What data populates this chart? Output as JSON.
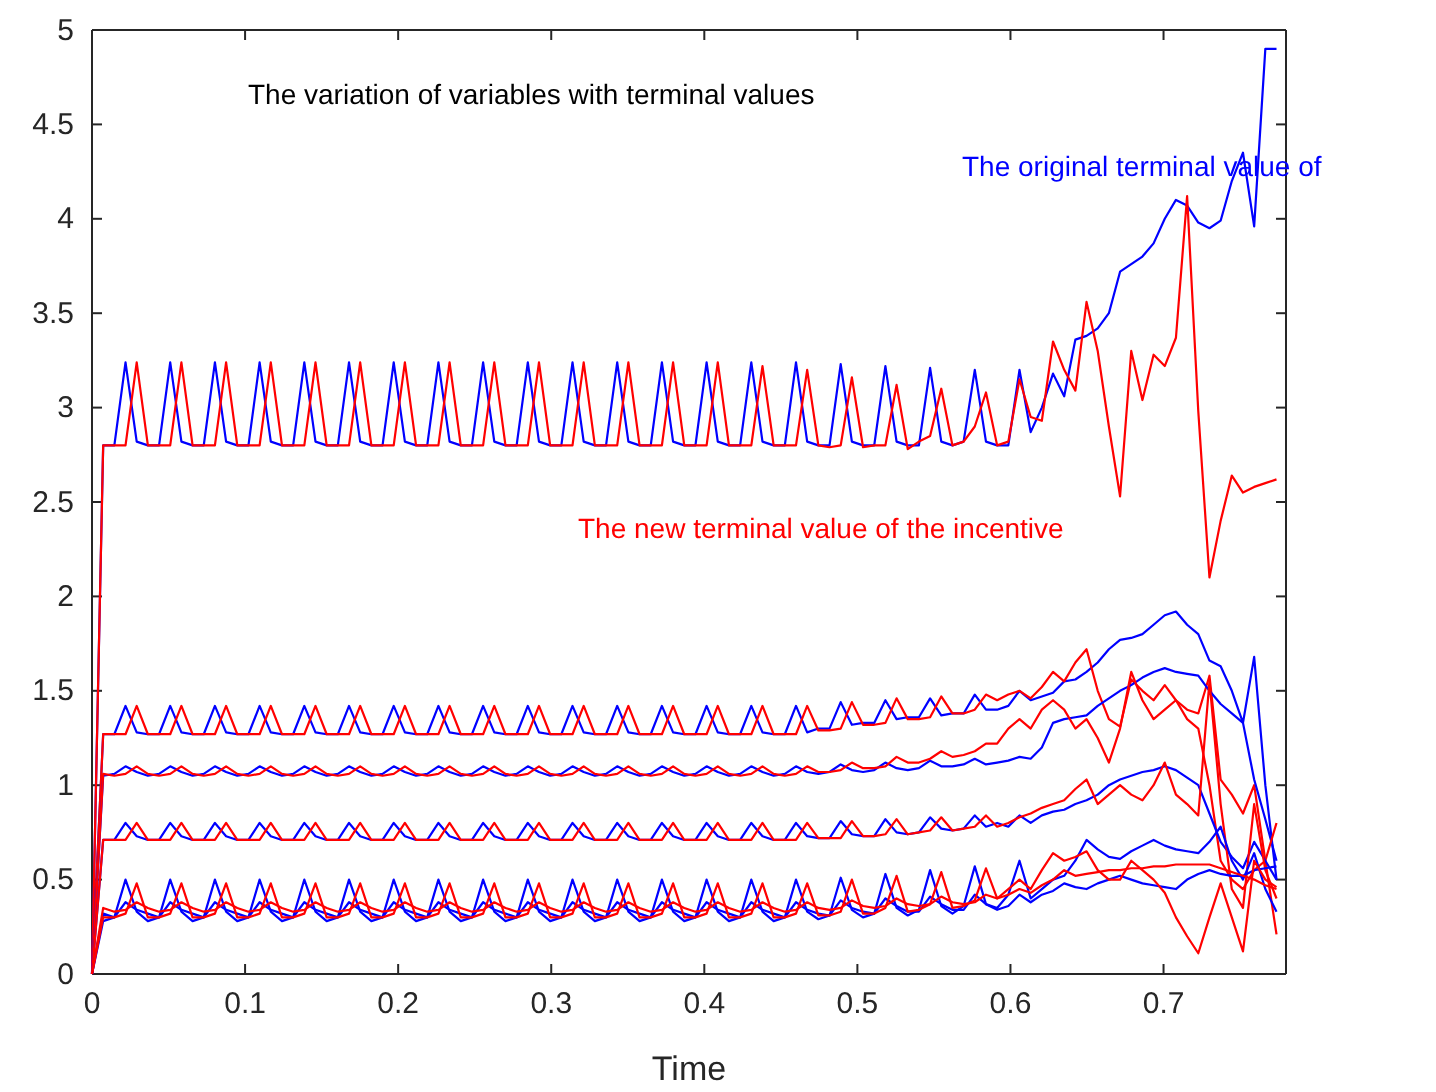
{
  "chart_data": {
    "type": "line",
    "title": "The variation of variables with terminal values",
    "xlabel": "Time",
    "annotations": [
      "The original terminal value of",
      "The new terminal value of the incentive"
    ],
    "xlim": [
      0,
      0.78
    ],
    "xticks": [
      0,
      0.1,
      0.2,
      0.3,
      0.4,
      0.5,
      0.6,
      0.7
    ],
    "ylim": [
      0,
      5
    ],
    "yticks": [
      0,
      0.5,
      1,
      1.5,
      2,
      2.5,
      3,
      3.5,
      4,
      4.5,
      5
    ],
    "grid": false,
    "x": [
      0,
      0.0073,
      0.0146,
      0.0219,
      0.0292,
      0.0365,
      0.0438,
      0.0511,
      0.0584,
      0.0657,
      0.073,
      0.0803,
      0.0876,
      0.0949,
      0.1022,
      0.1095,
      0.1168,
      0.1241,
      0.1314,
      0.1387,
      0.146,
      0.1533,
      0.1606,
      0.1679,
      0.1752,
      0.1825,
      0.1898,
      0.1971,
      0.2044,
      0.2117,
      0.219,
      0.2263,
      0.2336,
      0.2409,
      0.2482,
      0.2555,
      0.2628,
      0.2701,
      0.2774,
      0.2847,
      0.292,
      0.2993,
      0.3066,
      0.3139,
      0.3212,
      0.3285,
      0.3358,
      0.3431,
      0.3504,
      0.3577,
      0.365,
      0.3723,
      0.3796,
      0.3869,
      0.3942,
      0.4015,
      0.4088,
      0.4161,
      0.4234,
      0.4307,
      0.438,
      0.4453,
      0.4526,
      0.4599,
      0.4672,
      0.4745,
      0.4818,
      0.4891,
      0.4964,
      0.5037,
      0.511,
      0.5183,
      0.5256,
      0.5329,
      0.5402,
      0.5475,
      0.5548,
      0.5621,
      0.5694,
      0.5767,
      0.584,
      0.5913,
      0.5986,
      0.6059,
      0.6132,
      0.6205,
      0.6278,
      0.6351,
      0.6424,
      0.6497,
      0.657,
      0.6643,
      0.6716,
      0.6789,
      0.6862,
      0.6935,
      0.7008,
      0.7081,
      0.7154,
      0.7227,
      0.73,
      0.7373,
      0.7446,
      0.7519,
      0.7592,
      0.7665,
      0.7738
    ],
    "series": [
      {
        "color": "#0000ff",
        "values": [
          0,
          2.8,
          2.8,
          3.24,
          2.82,
          2.8,
          2.8,
          3.24,
          2.82,
          2.8,
          2.8,
          3.24,
          2.82,
          2.8,
          2.8,
          3.24,
          2.82,
          2.8,
          2.8,
          3.24,
          2.82,
          2.8,
          2.8,
          3.24,
          2.82,
          2.8,
          2.8,
          3.24,
          2.82,
          2.8,
          2.8,
          3.24,
          2.82,
          2.8,
          2.8,
          3.24,
          2.82,
          2.8,
          2.8,
          3.24,
          2.82,
          2.8,
          2.8,
          3.24,
          2.82,
          2.8,
          2.8,
          3.24,
          2.82,
          2.8,
          2.8,
          3.24,
          2.82,
          2.8,
          2.8,
          3.24,
          2.82,
          2.8,
          2.8,
          3.24,
          2.82,
          2.8,
          2.8,
          3.24,
          2.82,
          2.8,
          2.8,
          3.23,
          2.82,
          2.8,
          2.8,
          3.22,
          2.82,
          2.8,
          2.8,
          3.21,
          2.82,
          2.8,
          2.82,
          3.2,
          2.82,
          2.8,
          2.8,
          3.2,
          2.87,
          3.0,
          3.18,
          3.06,
          3.36,
          3.38,
          3.42,
          3.5,
          3.72,
          3.76,
          3.8,
          3.87,
          4.0,
          4.1,
          4.07,
          3.98,
          3.95,
          3.99,
          4.2,
          4.35,
          3.96,
          4.9,
          4.9
        ]
      },
      {
        "color": "#ff0000",
        "values": [
          0,
          2.8,
          2.8,
          2.8,
          3.24,
          2.8,
          2.8,
          2.8,
          3.24,
          2.8,
          2.8,
          2.8,
          3.24,
          2.8,
          2.8,
          2.8,
          3.24,
          2.8,
          2.8,
          2.8,
          3.24,
          2.8,
          2.8,
          2.8,
          3.24,
          2.8,
          2.8,
          2.8,
          3.24,
          2.8,
          2.8,
          2.8,
          3.24,
          2.8,
          2.8,
          2.8,
          3.24,
          2.8,
          2.8,
          2.8,
          3.24,
          2.8,
          2.8,
          2.8,
          3.24,
          2.8,
          2.8,
          2.8,
          3.24,
          2.8,
          2.8,
          2.8,
          3.24,
          2.8,
          2.8,
          2.8,
          3.24,
          2.8,
          2.8,
          2.8,
          3.22,
          2.8,
          2.8,
          2.8,
          3.2,
          2.8,
          2.79,
          2.8,
          3.16,
          2.79,
          2.8,
          2.8,
          3.12,
          2.78,
          2.82,
          2.85,
          3.1,
          2.8,
          2.82,
          2.9,
          3.08,
          2.8,
          2.82,
          3.15,
          2.95,
          2.93,
          3.35,
          3.2,
          3.09,
          3.56,
          3.3,
          2.9,
          2.53,
          3.3,
          3.04,
          3.28,
          3.22,
          3.37,
          4.12,
          2.98,
          2.1,
          2.4,
          2.64,
          2.55,
          2.58,
          2.6,
          2.62
        ]
      },
      {
        "color": "#0000ff",
        "values": [
          0,
          1.27,
          1.27,
          1.42,
          1.28,
          1.27,
          1.27,
          1.42,
          1.28,
          1.27,
          1.27,
          1.42,
          1.28,
          1.27,
          1.27,
          1.42,
          1.28,
          1.27,
          1.27,
          1.42,
          1.28,
          1.27,
          1.27,
          1.42,
          1.28,
          1.27,
          1.27,
          1.42,
          1.28,
          1.27,
          1.27,
          1.42,
          1.28,
          1.27,
          1.27,
          1.42,
          1.28,
          1.27,
          1.27,
          1.42,
          1.28,
          1.27,
          1.27,
          1.42,
          1.28,
          1.27,
          1.27,
          1.42,
          1.28,
          1.27,
          1.27,
          1.42,
          1.28,
          1.27,
          1.27,
          1.42,
          1.28,
          1.27,
          1.27,
          1.42,
          1.28,
          1.27,
          1.27,
          1.42,
          1.28,
          1.3,
          1.3,
          1.44,
          1.32,
          1.33,
          1.33,
          1.45,
          1.35,
          1.36,
          1.36,
          1.46,
          1.37,
          1.38,
          1.38,
          1.48,
          1.4,
          1.4,
          1.42,
          1.5,
          1.45,
          1.47,
          1.49,
          1.55,
          1.56,
          1.6,
          1.65,
          1.72,
          1.77,
          1.78,
          1.8,
          1.85,
          1.9,
          1.92,
          1.85,
          1.8,
          1.66,
          1.63,
          1.5,
          1.33,
          1.68,
          1.0,
          0.5
        ]
      },
      {
        "color": "#ff0000",
        "values": [
          0,
          1.27,
          1.27,
          1.27,
          1.42,
          1.27,
          1.27,
          1.27,
          1.42,
          1.27,
          1.27,
          1.27,
          1.42,
          1.27,
          1.27,
          1.27,
          1.42,
          1.27,
          1.27,
          1.27,
          1.42,
          1.27,
          1.27,
          1.27,
          1.42,
          1.27,
          1.27,
          1.27,
          1.42,
          1.27,
          1.27,
          1.27,
          1.42,
          1.27,
          1.27,
          1.27,
          1.42,
          1.27,
          1.27,
          1.27,
          1.42,
          1.27,
          1.27,
          1.27,
          1.42,
          1.27,
          1.27,
          1.27,
          1.42,
          1.27,
          1.27,
          1.27,
          1.42,
          1.27,
          1.27,
          1.27,
          1.42,
          1.27,
          1.27,
          1.27,
          1.42,
          1.27,
          1.27,
          1.27,
          1.42,
          1.29,
          1.29,
          1.3,
          1.44,
          1.32,
          1.32,
          1.33,
          1.46,
          1.35,
          1.35,
          1.36,
          1.47,
          1.38,
          1.38,
          1.4,
          1.48,
          1.45,
          1.48,
          1.5,
          1.46,
          1.52,
          1.6,
          1.55,
          1.65,
          1.72,
          1.5,
          1.35,
          1.31,
          1.56,
          1.5,
          1.45,
          1.53,
          1.45,
          1.4,
          1.38,
          1.58,
          1.03,
          0.95,
          0.85,
          1.0,
          0.6,
          0.21
        ]
      },
      {
        "color": "#0000ff",
        "values": [
          0,
          1.05,
          1.06,
          1.1,
          1.07,
          1.05,
          1.06,
          1.1,
          1.07,
          1.05,
          1.06,
          1.1,
          1.07,
          1.05,
          1.06,
          1.1,
          1.07,
          1.05,
          1.06,
          1.1,
          1.07,
          1.05,
          1.06,
          1.1,
          1.07,
          1.05,
          1.06,
          1.1,
          1.07,
          1.05,
          1.06,
          1.1,
          1.07,
          1.05,
          1.06,
          1.1,
          1.07,
          1.05,
          1.06,
          1.1,
          1.07,
          1.05,
          1.06,
          1.1,
          1.07,
          1.05,
          1.06,
          1.1,
          1.07,
          1.05,
          1.06,
          1.1,
          1.07,
          1.05,
          1.06,
          1.1,
          1.07,
          1.05,
          1.06,
          1.1,
          1.07,
          1.05,
          1.06,
          1.1,
          1.07,
          1.06,
          1.07,
          1.11,
          1.08,
          1.07,
          1.08,
          1.12,
          1.09,
          1.08,
          1.09,
          1.13,
          1.1,
          1.1,
          1.11,
          1.14,
          1.11,
          1.12,
          1.13,
          1.15,
          1.14,
          1.2,
          1.33,
          1.35,
          1.36,
          1.37,
          1.42,
          1.46,
          1.5,
          1.53,
          1.57,
          1.6,
          1.62,
          1.6,
          1.59,
          1.58,
          1.5,
          1.43,
          1.38,
          1.33,
          1.03,
          0.82,
          0.6
        ]
      },
      {
        "color": "#ff0000",
        "values": [
          0,
          1.06,
          1.05,
          1.06,
          1.1,
          1.06,
          1.05,
          1.06,
          1.1,
          1.06,
          1.05,
          1.06,
          1.1,
          1.06,
          1.05,
          1.06,
          1.1,
          1.06,
          1.05,
          1.06,
          1.1,
          1.06,
          1.05,
          1.06,
          1.1,
          1.06,
          1.05,
          1.06,
          1.1,
          1.06,
          1.05,
          1.06,
          1.1,
          1.06,
          1.05,
          1.06,
          1.1,
          1.06,
          1.05,
          1.06,
          1.1,
          1.06,
          1.05,
          1.06,
          1.1,
          1.06,
          1.05,
          1.06,
          1.1,
          1.06,
          1.05,
          1.06,
          1.1,
          1.06,
          1.05,
          1.06,
          1.1,
          1.06,
          1.05,
          1.06,
          1.1,
          1.06,
          1.05,
          1.06,
          1.1,
          1.07,
          1.07,
          1.08,
          1.12,
          1.09,
          1.09,
          1.1,
          1.15,
          1.12,
          1.12,
          1.14,
          1.18,
          1.15,
          1.16,
          1.18,
          1.22,
          1.22,
          1.3,
          1.35,
          1.3,
          1.4,
          1.45,
          1.4,
          1.3,
          1.35,
          1.25,
          1.12,
          1.3,
          1.6,
          1.45,
          1.35,
          1.4,
          1.45,
          1.35,
          1.3,
          1.0,
          0.6,
          0.5,
          0.45,
          0.55,
          0.6,
          0.8
        ]
      },
      {
        "color": "#0000ff",
        "values": [
          0,
          0.71,
          0.71,
          0.8,
          0.73,
          0.71,
          0.71,
          0.8,
          0.73,
          0.71,
          0.71,
          0.8,
          0.73,
          0.71,
          0.71,
          0.8,
          0.73,
          0.71,
          0.71,
          0.8,
          0.73,
          0.71,
          0.71,
          0.8,
          0.73,
          0.71,
          0.71,
          0.8,
          0.73,
          0.71,
          0.71,
          0.8,
          0.73,
          0.71,
          0.71,
          0.8,
          0.73,
          0.71,
          0.71,
          0.8,
          0.73,
          0.71,
          0.71,
          0.8,
          0.73,
          0.71,
          0.71,
          0.8,
          0.73,
          0.71,
          0.71,
          0.8,
          0.73,
          0.71,
          0.71,
          0.8,
          0.73,
          0.71,
          0.71,
          0.8,
          0.73,
          0.71,
          0.71,
          0.8,
          0.73,
          0.72,
          0.72,
          0.81,
          0.74,
          0.73,
          0.73,
          0.82,
          0.75,
          0.74,
          0.75,
          0.83,
          0.77,
          0.76,
          0.77,
          0.84,
          0.78,
          0.8,
          0.78,
          0.84,
          0.8,
          0.84,
          0.86,
          0.87,
          0.9,
          0.92,
          0.95,
          1.0,
          1.03,
          1.05,
          1.07,
          1.08,
          1.1,
          1.08,
          1.04,
          1.0,
          0.85,
          0.7,
          0.62,
          0.56,
          0.7,
          0.6,
          0.5
        ]
      },
      {
        "color": "#ff0000",
        "values": [
          0,
          0.71,
          0.71,
          0.71,
          0.8,
          0.71,
          0.71,
          0.71,
          0.8,
          0.71,
          0.71,
          0.71,
          0.8,
          0.71,
          0.71,
          0.71,
          0.8,
          0.71,
          0.71,
          0.71,
          0.8,
          0.71,
          0.71,
          0.71,
          0.8,
          0.71,
          0.71,
          0.71,
          0.8,
          0.71,
          0.71,
          0.71,
          0.8,
          0.71,
          0.71,
          0.71,
          0.8,
          0.71,
          0.71,
          0.71,
          0.8,
          0.71,
          0.71,
          0.71,
          0.8,
          0.71,
          0.71,
          0.71,
          0.8,
          0.71,
          0.71,
          0.71,
          0.8,
          0.71,
          0.71,
          0.71,
          0.8,
          0.71,
          0.71,
          0.71,
          0.8,
          0.71,
          0.71,
          0.71,
          0.8,
          0.72,
          0.72,
          0.72,
          0.81,
          0.73,
          0.73,
          0.74,
          0.82,
          0.74,
          0.75,
          0.76,
          0.83,
          0.76,
          0.77,
          0.78,
          0.84,
          0.78,
          0.8,
          0.83,
          0.85,
          0.88,
          0.9,
          0.92,
          0.98,
          1.03,
          0.9,
          0.95,
          1.0,
          0.95,
          0.92,
          1.0,
          1.12,
          0.95,
          0.9,
          0.84,
          1.55,
          0.9,
          0.45,
          0.35,
          0.9,
          0.55,
          0.4
        ]
      },
      {
        "color": "#0000ff",
        "values": [
          0,
          0.28,
          0.3,
          0.5,
          0.33,
          0.28,
          0.3,
          0.5,
          0.33,
          0.28,
          0.3,
          0.5,
          0.33,
          0.28,
          0.3,
          0.5,
          0.33,
          0.28,
          0.3,
          0.5,
          0.33,
          0.28,
          0.3,
          0.5,
          0.33,
          0.28,
          0.3,
          0.5,
          0.33,
          0.28,
          0.3,
          0.5,
          0.33,
          0.28,
          0.3,
          0.5,
          0.33,
          0.28,
          0.3,
          0.5,
          0.33,
          0.28,
          0.3,
          0.5,
          0.33,
          0.28,
          0.3,
          0.5,
          0.33,
          0.28,
          0.3,
          0.5,
          0.33,
          0.28,
          0.3,
          0.5,
          0.33,
          0.28,
          0.3,
          0.5,
          0.33,
          0.28,
          0.3,
          0.5,
          0.33,
          0.29,
          0.31,
          0.51,
          0.34,
          0.3,
          0.32,
          0.53,
          0.35,
          0.31,
          0.34,
          0.55,
          0.36,
          0.32,
          0.36,
          0.57,
          0.37,
          0.35,
          0.42,
          0.6,
          0.4,
          0.45,
          0.5,
          0.52,
          0.6,
          0.71,
          0.66,
          0.62,
          0.61,
          0.65,
          0.68,
          0.71,
          0.68,
          0.66,
          0.65,
          0.64,
          0.7,
          0.78,
          0.6,
          0.5,
          0.64,
          0.45,
          0.33
        ]
      },
      {
        "color": "#0000ff",
        "values": [
          0,
          0.32,
          0.3,
          0.38,
          0.34,
          0.32,
          0.3,
          0.38,
          0.34,
          0.32,
          0.3,
          0.38,
          0.34,
          0.32,
          0.3,
          0.38,
          0.34,
          0.32,
          0.3,
          0.38,
          0.34,
          0.32,
          0.3,
          0.38,
          0.34,
          0.32,
          0.3,
          0.38,
          0.34,
          0.32,
          0.3,
          0.38,
          0.34,
          0.32,
          0.3,
          0.38,
          0.34,
          0.32,
          0.3,
          0.38,
          0.34,
          0.32,
          0.3,
          0.38,
          0.34,
          0.32,
          0.3,
          0.38,
          0.34,
          0.32,
          0.3,
          0.38,
          0.34,
          0.32,
          0.3,
          0.38,
          0.34,
          0.32,
          0.3,
          0.38,
          0.34,
          0.32,
          0.3,
          0.38,
          0.34,
          0.32,
          0.31,
          0.39,
          0.35,
          0.33,
          0.32,
          0.4,
          0.36,
          0.33,
          0.33,
          0.41,
          0.37,
          0.34,
          0.34,
          0.42,
          0.37,
          0.34,
          0.36,
          0.42,
          0.38,
          0.42,
          0.44,
          0.48,
          0.46,
          0.45,
          0.48,
          0.5,
          0.52,
          0.5,
          0.48,
          0.47,
          0.46,
          0.45,
          0.5,
          0.53,
          0.55,
          0.53,
          0.52,
          0.52,
          0.55,
          0.56,
          0.57
        ]
      },
      {
        "color": "#ff0000",
        "values": [
          0,
          0.3,
          0.3,
          0.32,
          0.48,
          0.3,
          0.3,
          0.32,
          0.48,
          0.3,
          0.3,
          0.32,
          0.48,
          0.3,
          0.3,
          0.32,
          0.48,
          0.3,
          0.3,
          0.32,
          0.48,
          0.3,
          0.3,
          0.32,
          0.48,
          0.3,
          0.3,
          0.32,
          0.48,
          0.3,
          0.3,
          0.32,
          0.48,
          0.3,
          0.3,
          0.32,
          0.48,
          0.3,
          0.3,
          0.32,
          0.48,
          0.3,
          0.3,
          0.32,
          0.48,
          0.3,
          0.3,
          0.32,
          0.48,
          0.3,
          0.3,
          0.32,
          0.48,
          0.3,
          0.3,
          0.32,
          0.48,
          0.3,
          0.3,
          0.32,
          0.48,
          0.3,
          0.3,
          0.32,
          0.48,
          0.31,
          0.31,
          0.33,
          0.5,
          0.32,
          0.32,
          0.35,
          0.52,
          0.33,
          0.34,
          0.37,
          0.54,
          0.35,
          0.36,
          0.39,
          0.56,
          0.4,
          0.45,
          0.5,
          0.45,
          0.55,
          0.64,
          0.6,
          0.62,
          0.65,
          0.55,
          0.5,
          0.5,
          0.6,
          0.55,
          0.5,
          0.43,
          0.3,
          0.2,
          0.11,
          0.3,
          0.48,
          0.3,
          0.12,
          0.6,
          0.5,
          0.46
        ]
      },
      {
        "color": "#ff0000",
        "values": [
          0,
          0.35,
          0.33,
          0.34,
          0.38,
          0.35,
          0.33,
          0.34,
          0.38,
          0.35,
          0.33,
          0.34,
          0.38,
          0.35,
          0.33,
          0.34,
          0.38,
          0.35,
          0.33,
          0.34,
          0.38,
          0.35,
          0.33,
          0.34,
          0.38,
          0.35,
          0.33,
          0.34,
          0.38,
          0.35,
          0.33,
          0.34,
          0.38,
          0.35,
          0.33,
          0.34,
          0.38,
          0.35,
          0.33,
          0.34,
          0.38,
          0.35,
          0.33,
          0.34,
          0.38,
          0.35,
          0.33,
          0.34,
          0.38,
          0.35,
          0.33,
          0.34,
          0.38,
          0.35,
          0.33,
          0.34,
          0.38,
          0.35,
          0.33,
          0.34,
          0.38,
          0.35,
          0.33,
          0.34,
          0.38,
          0.35,
          0.34,
          0.35,
          0.39,
          0.36,
          0.35,
          0.36,
          0.4,
          0.37,
          0.36,
          0.37,
          0.41,
          0.38,
          0.37,
          0.38,
          0.42,
          0.4,
          0.42,
          0.45,
          0.43,
          0.47,
          0.5,
          0.55,
          0.52,
          0.53,
          0.54,
          0.55,
          0.55,
          0.56,
          0.56,
          0.57,
          0.57,
          0.58,
          0.58,
          0.58,
          0.58,
          0.56,
          0.54,
          0.52,
          0.5,
          0.47,
          0.45
        ]
      }
    ]
  }
}
